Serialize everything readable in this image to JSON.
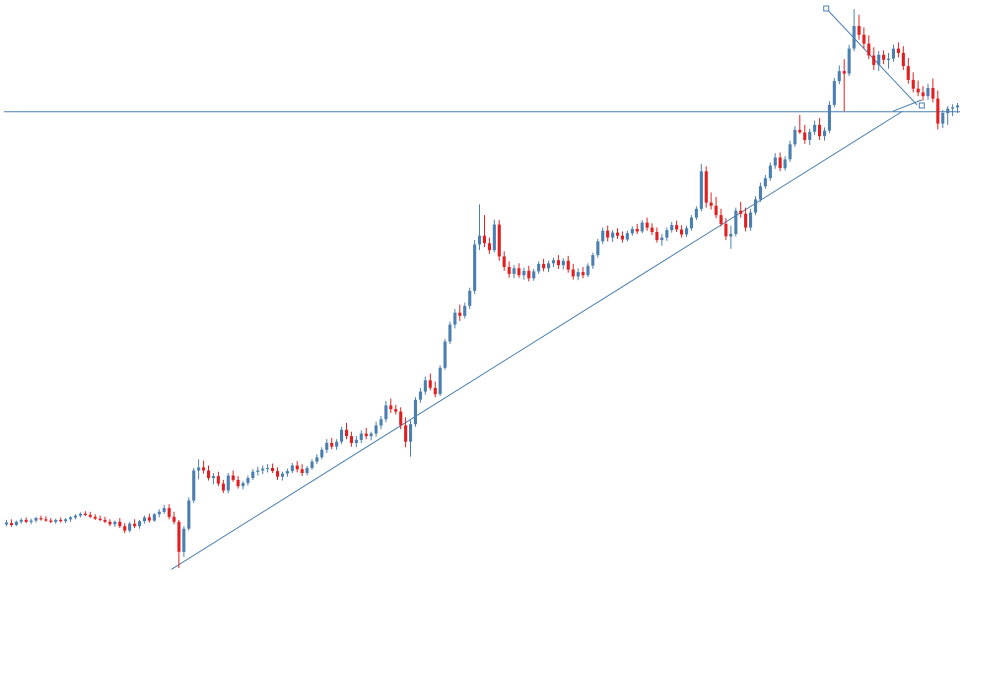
{
  "chart_data": {
    "type": "candlestick",
    "title": "",
    "xlabel": "",
    "ylabel": "",
    "grid": false,
    "legend": "none",
    "xlim": [
      0,
      200
    ],
    "ylim": [
      0,
      100
    ],
    "colors": {
      "up": "#4a7fb0",
      "down": "#e02020",
      "neutral": "#6fd06f",
      "trendline": "#4a7fb0",
      "background": "#ffffff"
    },
    "candles": [
      {
        "o": 17.2,
        "h": 17.9,
        "l": 16.9,
        "c": 17.5
      },
      {
        "o": 17.4,
        "h": 18.0,
        "l": 16.8,
        "c": 17.1
      },
      {
        "o": 17.1,
        "h": 17.8,
        "l": 16.9,
        "c": 17.6
      },
      {
        "o": 17.6,
        "h": 18.2,
        "l": 17.3,
        "c": 17.9
      },
      {
        "o": 17.9,
        "h": 18.3,
        "l": 17.4,
        "c": 17.6
      },
      {
        "o": 17.6,
        "h": 18.1,
        "l": 17.2,
        "c": 17.8
      },
      {
        "o": 17.8,
        "h": 18.4,
        "l": 17.5,
        "c": 18.2
      },
      {
        "o": 18.2,
        "h": 18.6,
        "l": 17.8,
        "c": 18.0
      },
      {
        "o": 18.0,
        "h": 18.5,
        "l": 17.6,
        "c": 17.8
      },
      {
        "o": 17.8,
        "h": 18.2,
        "l": 17.4,
        "c": 17.6
      },
      {
        "o": 17.6,
        "h": 18.1,
        "l": 17.3,
        "c": 17.9
      },
      {
        "o": 17.9,
        "h": 18.3,
        "l": 17.5,
        "c": 17.7
      },
      {
        "o": 17.7,
        "h": 18.2,
        "l": 17.4,
        "c": 18.0
      },
      {
        "o": 18.0,
        "h": 18.5,
        "l": 17.6,
        "c": 18.3
      },
      {
        "o": 18.3,
        "h": 18.8,
        "l": 18.0,
        "c": 18.6
      },
      {
        "o": 18.6,
        "h": 19.1,
        "l": 18.3,
        "c": 18.9
      },
      {
        "o": 18.9,
        "h": 19.3,
        "l": 18.5,
        "c": 18.7
      },
      {
        "o": 18.7,
        "h": 19.2,
        "l": 18.2,
        "c": 18.4
      },
      {
        "o": 18.4,
        "h": 18.8,
        "l": 17.9,
        "c": 18.1
      },
      {
        "o": 18.1,
        "h": 18.6,
        "l": 17.7,
        "c": 17.9
      },
      {
        "o": 17.9,
        "h": 18.4,
        "l": 17.4,
        "c": 17.6
      },
      {
        "o": 17.6,
        "h": 18.0,
        "l": 16.9,
        "c": 17.2
      },
      {
        "o": 17.2,
        "h": 17.8,
        "l": 16.8,
        "c": 17.6
      },
      {
        "o": 17.6,
        "h": 18.2,
        "l": 16.6,
        "c": 16.9
      },
      {
        "o": 16.9,
        "h": 17.4,
        "l": 15.8,
        "c": 16.2
      },
      {
        "o": 16.2,
        "h": 17.6,
        "l": 15.9,
        "c": 17.3
      },
      {
        "o": 17.3,
        "h": 18.0,
        "l": 16.6,
        "c": 16.9
      },
      {
        "o": 16.9,
        "h": 17.9,
        "l": 16.5,
        "c": 17.7
      },
      {
        "o": 17.7,
        "h": 18.6,
        "l": 17.3,
        "c": 18.3
      },
      {
        "o": 18.3,
        "h": 18.9,
        "l": 17.5,
        "c": 17.8
      },
      {
        "o": 17.8,
        "h": 19.0,
        "l": 17.6,
        "c": 18.8
      },
      {
        "o": 18.8,
        "h": 19.6,
        "l": 18.3,
        "c": 19.2
      },
      {
        "o": 19.2,
        "h": 20.3,
        "l": 18.9,
        "c": 19.8
      },
      {
        "o": 19.8,
        "h": 20.4,
        "l": 18.0,
        "c": 18.4
      },
      {
        "o": 18.4,
        "h": 19.2,
        "l": 17.2,
        "c": 17.6
      },
      {
        "o": 17.6,
        "h": 17.9,
        "l": 10.2,
        "c": 12.8
      },
      {
        "o": 12.8,
        "h": 16.9,
        "l": 12.0,
        "c": 16.5
      },
      {
        "o": 16.5,
        "h": 21.5,
        "l": 16.2,
        "c": 21.0
      },
      {
        "o": 21.0,
        "h": 26.2,
        "l": 20.6,
        "c": 25.8
      },
      {
        "o": 25.8,
        "h": 27.6,
        "l": 24.4,
        "c": 26.3
      },
      {
        "o": 26.3,
        "h": 27.4,
        "l": 25.3,
        "c": 25.8
      },
      {
        "o": 25.8,
        "h": 26.6,
        "l": 24.2,
        "c": 24.6
      },
      {
        "o": 24.6,
        "h": 25.4,
        "l": 23.6,
        "c": 24.9
      },
      {
        "o": 24.9,
        "h": 25.6,
        "l": 23.3,
        "c": 23.7
      },
      {
        "o": 23.7,
        "h": 24.3,
        "l": 22.2,
        "c": 22.6
      },
      {
        "o": 22.6,
        "h": 25.4,
        "l": 22.2,
        "c": 25.0
      },
      {
        "o": 25.0,
        "h": 25.8,
        "l": 24.0,
        "c": 24.3
      },
      {
        "o": 24.3,
        "h": 24.9,
        "l": 22.9,
        "c": 23.3
      },
      {
        "o": 23.3,
        "h": 24.1,
        "l": 22.8,
        "c": 23.8
      },
      {
        "o": 23.8,
        "h": 25.0,
        "l": 23.4,
        "c": 24.6
      },
      {
        "o": 24.6,
        "h": 26.0,
        "l": 24.3,
        "c": 25.6
      },
      {
        "o": 25.6,
        "h": 26.4,
        "l": 25.0,
        "c": 25.8
      },
      {
        "o": 25.8,
        "h": 26.6,
        "l": 25.2,
        "c": 26.1
      },
      {
        "o": 26.1,
        "h": 26.8,
        "l": 25.5,
        "c": 26.2
      },
      {
        "o": 26.2,
        "h": 26.9,
        "l": 25.4,
        "c": 25.7
      },
      {
        "o": 25.7,
        "h": 26.3,
        "l": 24.3,
        "c": 24.8
      },
      {
        "o": 24.8,
        "h": 25.6,
        "l": 24.2,
        "c": 25.3
      },
      {
        "o": 25.3,
        "h": 26.1,
        "l": 24.8,
        "c": 25.7
      },
      {
        "o": 25.7,
        "h": 27.0,
        "l": 25.4,
        "c": 26.6
      },
      {
        "o": 26.6,
        "h": 27.3,
        "l": 25.5,
        "c": 26.0
      },
      {
        "o": 26.0,
        "h": 26.8,
        "l": 24.9,
        "c": 25.4
      },
      {
        "o": 25.4,
        "h": 26.5,
        "l": 25.0,
        "c": 26.2
      },
      {
        "o": 26.2,
        "h": 27.6,
        "l": 25.9,
        "c": 27.2
      },
      {
        "o": 27.2,
        "h": 28.4,
        "l": 26.8,
        "c": 27.9
      },
      {
        "o": 27.9,
        "h": 29.5,
        "l": 27.6,
        "c": 29.1
      },
      {
        "o": 29.1,
        "h": 30.8,
        "l": 28.6,
        "c": 30.2
      },
      {
        "o": 30.2,
        "h": 31.0,
        "l": 29.2,
        "c": 29.6
      },
      {
        "o": 29.6,
        "h": 30.8,
        "l": 29.1,
        "c": 30.4
      },
      {
        "o": 30.4,
        "h": 32.8,
        "l": 30.0,
        "c": 32.3
      },
      {
        "o": 32.3,
        "h": 33.4,
        "l": 30.8,
        "c": 31.3
      },
      {
        "o": 31.3,
        "h": 32.0,
        "l": 29.6,
        "c": 30.2
      },
      {
        "o": 30.2,
        "h": 31.3,
        "l": 29.5,
        "c": 30.7
      },
      {
        "o": 30.7,
        "h": 32.2,
        "l": 30.2,
        "c": 31.7
      },
      {
        "o": 31.7,
        "h": 32.6,
        "l": 30.8,
        "c": 31.3
      },
      {
        "o": 31.3,
        "h": 32.0,
        "l": 30.6,
        "c": 31.7
      },
      {
        "o": 31.7,
        "h": 33.6,
        "l": 31.2,
        "c": 33.0
      },
      {
        "o": 33.0,
        "h": 34.5,
        "l": 32.4,
        "c": 34.0
      },
      {
        "o": 34.0,
        "h": 36.9,
        "l": 33.5,
        "c": 36.2
      },
      {
        "o": 36.2,
        "h": 37.3,
        "l": 35.0,
        "c": 35.6
      },
      {
        "o": 35.6,
        "h": 36.3,
        "l": 34.8,
        "c": 35.2
      },
      {
        "o": 35.2,
        "h": 35.9,
        "l": 32.4,
        "c": 33.0
      },
      {
        "o": 33.0,
        "h": 34.3,
        "l": 29.5,
        "c": 30.4
      },
      {
        "o": 30.4,
        "h": 33.8,
        "l": 28.0,
        "c": 33.2
      },
      {
        "o": 33.2,
        "h": 37.5,
        "l": 32.8,
        "c": 37.1
      },
      {
        "o": 37.1,
        "h": 39.0,
        "l": 36.6,
        "c": 38.4
      },
      {
        "o": 38.4,
        "h": 40.8,
        "l": 37.9,
        "c": 40.2
      },
      {
        "o": 40.2,
        "h": 41.3,
        "l": 38.6,
        "c": 39.0
      },
      {
        "o": 39.0,
        "h": 40.0,
        "l": 37.5,
        "c": 38.0
      },
      {
        "o": 38.0,
        "h": 42.6,
        "l": 37.7,
        "c": 42.2
      },
      {
        "o": 42.2,
        "h": 46.8,
        "l": 41.9,
        "c": 46.4
      },
      {
        "o": 46.4,
        "h": 49.6,
        "l": 46.0,
        "c": 49.1
      },
      {
        "o": 49.1,
        "h": 51.6,
        "l": 48.5,
        "c": 51.0
      },
      {
        "o": 51.0,
        "h": 52.3,
        "l": 49.7,
        "c": 50.5
      },
      {
        "o": 50.5,
        "h": 52.6,
        "l": 50.1,
        "c": 52.1
      },
      {
        "o": 52.1,
        "h": 55.0,
        "l": 51.6,
        "c": 54.5
      },
      {
        "o": 54.5,
        "h": 62.6,
        "l": 54.0,
        "c": 61.9
      },
      {
        "o": 61.9,
        "h": 68.3,
        "l": 61.0,
        "c": 63.3
      },
      {
        "o": 63.3,
        "h": 66.6,
        "l": 61.5,
        "c": 62.1
      },
      {
        "o": 62.1,
        "h": 63.0,
        "l": 60.4,
        "c": 61.0
      },
      {
        "o": 61.0,
        "h": 65.9,
        "l": 60.6,
        "c": 65.1
      },
      {
        "o": 65.1,
        "h": 65.8,
        "l": 59.3,
        "c": 60.0
      },
      {
        "o": 60.0,
        "h": 60.8,
        "l": 57.7,
        "c": 58.3
      },
      {
        "o": 58.3,
        "h": 59.2,
        "l": 56.6,
        "c": 57.2
      },
      {
        "o": 57.2,
        "h": 58.6,
        "l": 56.5,
        "c": 58.1
      },
      {
        "o": 58.1,
        "h": 58.9,
        "l": 56.6,
        "c": 57.0
      },
      {
        "o": 57.0,
        "h": 58.2,
        "l": 56.3,
        "c": 57.7
      },
      {
        "o": 57.7,
        "h": 58.5,
        "l": 56.0,
        "c": 56.5
      },
      {
        "o": 56.5,
        "h": 58.0,
        "l": 56.1,
        "c": 57.6
      },
      {
        "o": 57.6,
        "h": 59.2,
        "l": 57.2,
        "c": 58.8
      },
      {
        "o": 58.8,
        "h": 59.6,
        "l": 57.6,
        "c": 58.1
      },
      {
        "o": 58.1,
        "h": 59.3,
        "l": 57.5,
        "c": 58.9
      },
      {
        "o": 58.9,
        "h": 59.8,
        "l": 58.3,
        "c": 59.4
      },
      {
        "o": 59.4,
        "h": 60.2,
        "l": 58.0,
        "c": 58.6
      },
      {
        "o": 58.6,
        "h": 59.7,
        "l": 57.9,
        "c": 59.3
      },
      {
        "o": 59.3,
        "h": 60.1,
        "l": 57.4,
        "c": 57.9
      },
      {
        "o": 57.9,
        "h": 58.8,
        "l": 56.3,
        "c": 56.8
      },
      {
        "o": 56.8,
        "h": 58.1,
        "l": 56.2,
        "c": 57.5
      },
      {
        "o": 57.5,
        "h": 58.3,
        "l": 56.5,
        "c": 57.0
      },
      {
        "o": 57.0,
        "h": 58.9,
        "l": 56.7,
        "c": 58.5
      },
      {
        "o": 58.5,
        "h": 60.6,
        "l": 58.0,
        "c": 60.2
      },
      {
        "o": 60.2,
        "h": 62.8,
        "l": 59.8,
        "c": 62.4
      },
      {
        "o": 62.4,
        "h": 64.6,
        "l": 62.0,
        "c": 64.1
      },
      {
        "o": 64.1,
        "h": 64.9,
        "l": 62.4,
        "c": 63.0
      },
      {
        "o": 63.0,
        "h": 64.2,
        "l": 62.3,
        "c": 63.8
      },
      {
        "o": 63.8,
        "h": 64.5,
        "l": 62.8,
        "c": 63.3
      },
      {
        "o": 63.3,
        "h": 64.0,
        "l": 62.2,
        "c": 62.7
      },
      {
        "o": 62.7,
        "h": 64.1,
        "l": 62.4,
        "c": 63.7
      },
      {
        "o": 63.7,
        "h": 64.8,
        "l": 63.3,
        "c": 64.4
      },
      {
        "o": 64.4,
        "h": 65.2,
        "l": 63.6,
        "c": 64.0
      },
      {
        "o": 64.0,
        "h": 65.8,
        "l": 63.7,
        "c": 65.4
      },
      {
        "o": 65.4,
        "h": 66.2,
        "l": 64.1,
        "c": 64.6
      },
      {
        "o": 64.6,
        "h": 65.3,
        "l": 63.4,
        "c": 63.9
      },
      {
        "o": 63.9,
        "h": 64.6,
        "l": 62.2,
        "c": 62.6
      },
      {
        "o": 62.6,
        "h": 63.6,
        "l": 61.7,
        "c": 63.0
      },
      {
        "o": 63.0,
        "h": 64.6,
        "l": 62.5,
        "c": 64.2
      },
      {
        "o": 64.2,
        "h": 65.5,
        "l": 63.8,
        "c": 65.0
      },
      {
        "o": 65.0,
        "h": 65.7,
        "l": 63.9,
        "c": 64.3
      },
      {
        "o": 64.3,
        "h": 65.0,
        "l": 63.0,
        "c": 63.5
      },
      {
        "o": 63.5,
        "h": 64.9,
        "l": 63.1,
        "c": 64.5
      },
      {
        "o": 64.5,
        "h": 66.6,
        "l": 64.1,
        "c": 66.2
      },
      {
        "o": 66.2,
        "h": 68.0,
        "l": 65.8,
        "c": 67.6
      },
      {
        "o": 67.6,
        "h": 74.8,
        "l": 67.2,
        "c": 73.6
      },
      {
        "o": 73.6,
        "h": 74.4,
        "l": 67.8,
        "c": 68.6
      },
      {
        "o": 68.6,
        "h": 70.2,
        "l": 67.5,
        "c": 68.1
      },
      {
        "o": 68.1,
        "h": 69.5,
        "l": 66.1,
        "c": 66.6
      },
      {
        "o": 66.6,
        "h": 67.6,
        "l": 64.8,
        "c": 65.2
      },
      {
        "o": 65.2,
        "h": 66.1,
        "l": 62.6,
        "c": 63.2
      },
      {
        "o": 63.2,
        "h": 64.9,
        "l": 61.2,
        "c": 63.6
      },
      {
        "o": 63.6,
        "h": 67.8,
        "l": 63.2,
        "c": 67.3
      },
      {
        "o": 67.3,
        "h": 68.7,
        "l": 66.2,
        "c": 66.8
      },
      {
        "o": 66.8,
        "h": 67.8,
        "l": 64.0,
        "c": 64.6
      },
      {
        "o": 64.6,
        "h": 67.6,
        "l": 64.1,
        "c": 67.0
      },
      {
        "o": 67.0,
        "h": 69.6,
        "l": 66.6,
        "c": 69.1
      },
      {
        "o": 69.1,
        "h": 71.8,
        "l": 68.7,
        "c": 71.2
      },
      {
        "o": 71.2,
        "h": 73.0,
        "l": 70.8,
        "c": 72.5
      },
      {
        "o": 72.5,
        "h": 75.0,
        "l": 72.1,
        "c": 74.5
      },
      {
        "o": 74.5,
        "h": 76.5,
        "l": 74.0,
        "c": 75.8
      },
      {
        "o": 75.8,
        "h": 76.6,
        "l": 73.6,
        "c": 74.1
      },
      {
        "o": 74.1,
        "h": 76.0,
        "l": 73.7,
        "c": 75.5
      },
      {
        "o": 75.5,
        "h": 78.5,
        "l": 75.1,
        "c": 77.9
      },
      {
        "o": 77.9,
        "h": 80.8,
        "l": 77.5,
        "c": 80.2
      },
      {
        "o": 80.2,
        "h": 82.6,
        "l": 79.6,
        "c": 79.8
      },
      {
        "o": 79.8,
        "h": 81.0,
        "l": 78.0,
        "c": 78.6
      },
      {
        "o": 78.6,
        "h": 80.4,
        "l": 77.8,
        "c": 79.9
      },
      {
        "o": 79.9,
        "h": 81.7,
        "l": 79.4,
        "c": 81.0
      },
      {
        "o": 81.0,
        "h": 82.1,
        "l": 78.6,
        "c": 79.2
      },
      {
        "o": 79.2,
        "h": 80.6,
        "l": 78.5,
        "c": 80.1
      },
      {
        "o": 80.1,
        "h": 84.8,
        "l": 79.7,
        "c": 84.2
      },
      {
        "o": 84.2,
        "h": 88.5,
        "l": 83.8,
        "c": 88.0
      },
      {
        "o": 88.0,
        "h": 90.5,
        "l": 87.5,
        "c": 89.6
      },
      {
        "o": 89.6,
        "h": 91.5,
        "l": 83.2,
        "c": 89.2
      },
      {
        "o": 89.2,
        "h": 93.8,
        "l": 88.8,
        "c": 93.2
      },
      {
        "o": 93.2,
        "h": 99.5,
        "l": 92.8,
        "c": 96.8
      },
      {
        "o": 96.8,
        "h": 98.6,
        "l": 94.6,
        "c": 95.4
      },
      {
        "o": 95.4,
        "h": 96.6,
        "l": 93.2,
        "c": 94.0
      },
      {
        "o": 94.0,
        "h": 95.3,
        "l": 91.5,
        "c": 92.1
      },
      {
        "o": 92.1,
        "h": 93.4,
        "l": 89.8,
        "c": 90.6
      },
      {
        "o": 90.6,
        "h": 92.8,
        "l": 89.6,
        "c": 92.2
      },
      {
        "o": 92.2,
        "h": 92.9,
        "l": 90.7,
        "c": 91.4
      },
      {
        "o": 91.4,
        "h": 92.5,
        "l": 90.0,
        "c": 91.6
      },
      {
        "o": 91.6,
        "h": 93.8,
        "l": 91.1,
        "c": 93.2
      },
      {
        "o": 93.2,
        "h": 94.2,
        "l": 91.8,
        "c": 92.5
      },
      {
        "o": 92.5,
        "h": 93.6,
        "l": 89.8,
        "c": 90.4
      },
      {
        "o": 90.4,
        "h": 91.7,
        "l": 87.6,
        "c": 88.2
      },
      {
        "o": 88.2,
        "h": 89.4,
        "l": 86.2,
        "c": 86.8
      },
      {
        "o": 86.8,
        "h": 88.1,
        "l": 85.6,
        "c": 86.2
      },
      {
        "o": 86.2,
        "h": 87.2,
        "l": 84.9,
        "c": 85.6
      },
      {
        "o": 85.6,
        "h": 87.6,
        "l": 85.0,
        "c": 86.9
      },
      {
        "o": 86.9,
        "h": 88.4,
        "l": 84.6,
        "c": 85.2
      },
      {
        "o": 85.2,
        "h": 86.5,
        "l": 80.3,
        "c": 81.2
      },
      {
        "o": 81.2,
        "h": 83.4,
        "l": 80.5,
        "c": 82.9
      },
      {
        "o": 82.9,
        "h": 84.0,
        "l": 81.0,
        "c": 83.6
      },
      {
        "o": 83.6,
        "h": 84.3,
        "l": 82.4,
        "c": 83.8
      },
      {
        "o": 83.8,
        "h": 84.5,
        "l": 82.9,
        "c": 84.1
      }
    ],
    "trendlines": [
      {
        "name": "",
        "from": [
          35,
          10.0
        ],
        "to": [
          188,
          83.2
        ]
      },
      {
        "name": "",
        "from": [
          0,
          83.1
        ],
        "to": [
          200,
          83.1
        ]
      },
      {
        "name": "",
        "from": [
          172,
          99.6
        ],
        "to": [
          191,
          84.2
        ]
      },
      {
        "name": "",
        "from": [
          186,
          83.2
        ],
        "to": [
          192,
          85.0
        ]
      }
    ],
    "markers": [
      {
        "x": 172,
        "y": 99.6
      },
      {
        "x": 192,
        "y": 84.1
      }
    ]
  }
}
